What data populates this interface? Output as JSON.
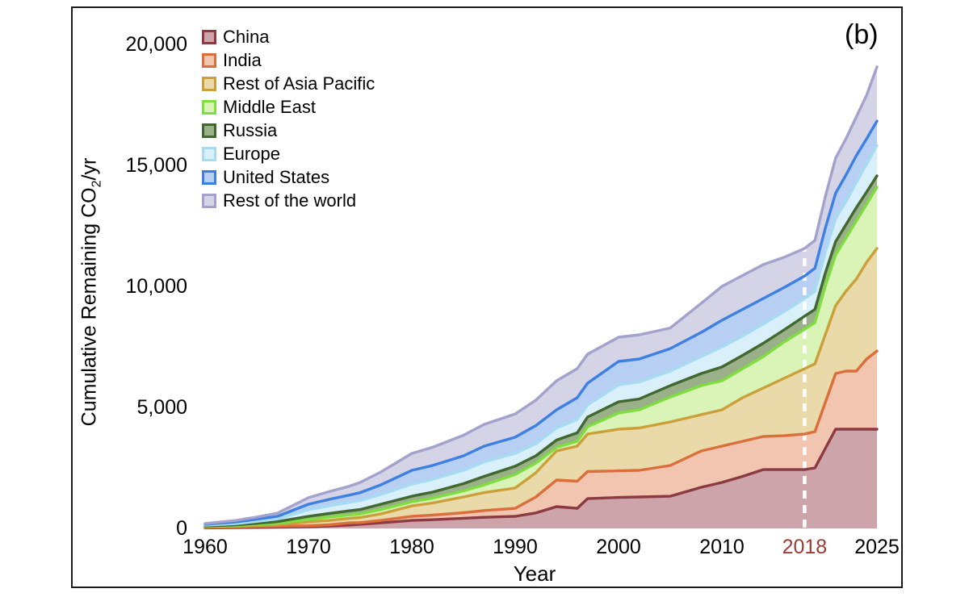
{
  "panel_label": "(b)",
  "axes": {
    "y_label_pre": "Cumulative Remaining CO",
    "y_label_sub": "2",
    "y_label_post": "/yr",
    "x_label": "Year",
    "y_ticks": [
      {
        "label": "0",
        "value": 0
      },
      {
        "label": "5,000",
        "value": 5000
      },
      {
        "label": "10,000",
        "value": 10000
      },
      {
        "label": "15,000",
        "value": 15000
      },
      {
        "label": "20,000",
        "value": 20000
      }
    ],
    "x_ticks": [
      {
        "label": "1960",
        "year": 1960,
        "highlight": false
      },
      {
        "label": "1970",
        "year": 1970,
        "highlight": false
      },
      {
        "label": "1980",
        "year": 1980,
        "highlight": false
      },
      {
        "label": "1990",
        "year": 1990,
        "highlight": false
      },
      {
        "label": "2000",
        "year": 2000,
        "highlight": false
      },
      {
        "label": "2010",
        "year": 2010,
        "highlight": false
      },
      {
        "label": "2018",
        "year": 2018,
        "highlight": true
      },
      {
        "label": "2025",
        "year": 2025,
        "highlight": false
      }
    ],
    "highlight_tick_color": "#9E3A32",
    "text_color": "#000000"
  },
  "legend": [
    {
      "label": "China",
      "line_color": "#8C3A42",
      "fill_color": "#CDA4A9"
    },
    {
      "label": "India",
      "line_color": "#DB6F3B",
      "fill_color": "#F2C5B0"
    },
    {
      "label": "Rest of Asia Pacific",
      "line_color": "#CB9F3A",
      "fill_color": "#EADAA9"
    },
    {
      "label": "Middle East",
      "line_color": "#7EDD3F",
      "fill_color": "#D9F4B6"
    },
    {
      "label": "Russia",
      "line_color": "#41682F",
      "fill_color": "#9AB089"
    },
    {
      "label": "Europe",
      "line_color": "#A6DBF2",
      "fill_color": "#D9EFFA"
    },
    {
      "label": "United States",
      "line_color": "#3D80E2",
      "fill_color": "#B6CFF3"
    },
    {
      "label": "Rest of the world",
      "line_color": "#A2A2CC",
      "fill_color": "#D4D4E6"
    }
  ],
  "chart_data": {
    "type": "area",
    "stacked": true,
    "title": "",
    "xlabel": "Year",
    "ylabel": "Cumulative Remaining CO2/yr",
    "xlim": [
      1960,
      2025
    ],
    "ylim": [
      0,
      20000
    ],
    "grid": false,
    "legend_position": "top-left",
    "highlight_year": 2018,
    "highlight_marker": {
      "style": "dashed-vertical-line",
      "color": "#FFFFFF"
    },
    "stack_order_note": "series listed bottom-to-top; values are cumulative stack tops (upper boundary of each band) in same units as y-axis",
    "x": [
      1960,
      1963,
      1965,
      1967,
      1970,
      1972,
      1974,
      1975,
      1977,
      1980,
      1982,
      1985,
      1987,
      1990,
      1992,
      1994,
      1996,
      1997,
      2000,
      2002,
      2005,
      2008,
      2010,
      2012,
      2014,
      2016,
      2018,
      2019,
      2020,
      2021,
      2022,
      2023,
      2024,
      2025
    ],
    "series": [
      {
        "id": "china",
        "name": "China",
        "line_color": "#8C3A42",
        "fill_color": "#CDA4A9",
        "cumulative_top": [
          20,
          30,
          40,
          50,
          70,
          100,
          140,
          170,
          230,
          330,
          360,
          420,
          460,
          500,
          640,
          900,
          830,
          1230,
          1280,
          1300,
          1330,
          1700,
          1900,
          2150,
          2430,
          2430,
          2430,
          2500,
          3300,
          4100,
          4100,
          4100,
          4100,
          4100
        ]
      },
      {
        "id": "india",
        "name": "India",
        "line_color": "#DB6F3B",
        "fill_color": "#F2C5B0",
        "cumulative_top": [
          40,
          60,
          80,
          90,
          110,
          150,
          230,
          240,
          330,
          500,
          550,
          650,
          740,
          830,
          1300,
          2000,
          1950,
          2350,
          2380,
          2400,
          2600,
          3200,
          3400,
          3600,
          3800,
          3830,
          3900,
          4000,
          5200,
          6400,
          6500,
          6500,
          7000,
          7330
        ]
      },
      {
        "id": "roap",
        "name": "Rest of Asia Pacific",
        "line_color": "#CB9F3A",
        "fill_color": "#EADAA9",
        "cumulative_top": [
          60,
          90,
          120,
          150,
          270,
          330,
          420,
          450,
          600,
          930,
          1050,
          1300,
          1480,
          1670,
          2300,
          3200,
          3400,
          3900,
          4100,
          4150,
          4400,
          4700,
          4900,
          5400,
          5800,
          6200,
          6600,
          6800,
          8000,
          9200,
          9800,
          10300,
          11000,
          11570
        ]
      },
      {
        "id": "mideast",
        "name": "Middle East",
        "line_color": "#7EDD3F",
        "fill_color": "#D9F4B6",
        "cumulative_top": [
          80,
          120,
          160,
          210,
          370,
          470,
          560,
          600,
          780,
          1100,
          1250,
          1550,
          1800,
          2230,
          2700,
          3350,
          3600,
          4200,
          4770,
          4900,
          5430,
          5900,
          6100,
          6600,
          7100,
          7700,
          8230,
          8500,
          10000,
          11300,
          12000,
          12700,
          13400,
          14100
        ]
      },
      {
        "id": "russia",
        "name": "Russia",
        "line_color": "#41682F",
        "fill_color": "#9AB089",
        "cumulative_top": [
          100,
          150,
          210,
          280,
          500,
          620,
          730,
          780,
          1000,
          1330,
          1500,
          1850,
          2150,
          2570,
          3000,
          3650,
          3950,
          4600,
          5230,
          5350,
          5900,
          6400,
          6670,
          7150,
          7650,
          8200,
          8770,
          9050,
          10550,
          11850,
          12550,
          13250,
          13900,
          14570
        ]
      },
      {
        "id": "europe",
        "name": "Europe",
        "line_color": "#A6DBF2",
        "fill_color": "#D9EFFA",
        "cumulative_top": [
          130,
          200,
          290,
          390,
          770,
          930,
          1080,
          1150,
          1400,
          1830,
          2030,
          2400,
          2750,
          3100,
          3500,
          4150,
          4500,
          5100,
          5930,
          6050,
          6500,
          7100,
          7500,
          7950,
          8450,
          8950,
          9500,
          9800,
          11400,
          12800,
          13500,
          14300,
          15050,
          15830
        ]
      },
      {
        "id": "us",
        "name": "United States",
        "line_color": "#3D80E2",
        "fill_color": "#B6CFF3",
        "cumulative_top": [
          170,
          270,
          380,
          500,
          1000,
          1200,
          1380,
          1480,
          1800,
          2400,
          2600,
          3000,
          3400,
          3770,
          4250,
          4900,
          5400,
          6000,
          6900,
          7000,
          7430,
          8100,
          8600,
          9050,
          9500,
          9950,
          10430,
          10750,
          12400,
          13850,
          14600,
          15400,
          16100,
          16830
        ]
      },
      {
        "id": "row",
        "name": "Rest of the world",
        "line_color": "#A2A2CC",
        "fill_color": "#D4D4E6",
        "cumulative_top": [
          200,
          330,
          470,
          630,
          1270,
          1520,
          1750,
          1900,
          2330,
          3100,
          3350,
          3850,
          4300,
          4730,
          5300,
          6100,
          6600,
          7200,
          7900,
          8000,
          8280,
          9300,
          10000,
          10450,
          10900,
          11200,
          11570,
          11900,
          13700,
          15300,
          16100,
          17000,
          17900,
          19070
        ]
      }
    ]
  }
}
